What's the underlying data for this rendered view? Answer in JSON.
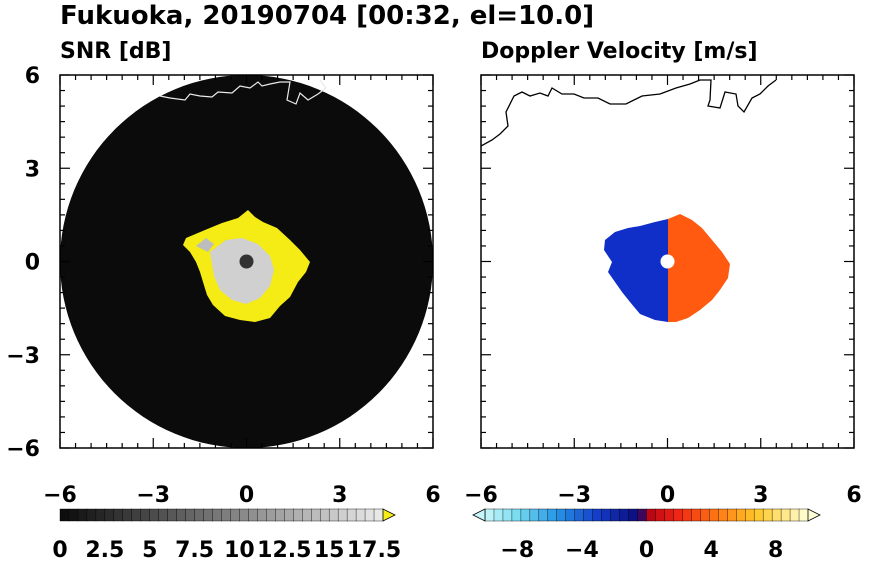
{
  "header": {
    "title": "Fukuoka, 20190704 [00:32, el=10.0]"
  },
  "chart_data": [
    {
      "type": "heatmap",
      "title": "SNR [dB]",
      "x_ticks": [
        "−6",
        "−3",
        "0",
        "3",
        "6"
      ],
      "y_ticks": [
        "6",
        "3",
        "0",
        "−3",
        "−6"
      ],
      "xlim": [
        -6,
        6
      ],
      "ylim": [
        -6,
        6
      ],
      "colorbar": {
        "ticks": [
          "0",
          "2.5",
          "5",
          "7.5",
          "10",
          "12.5",
          "15",
          "17.5"
        ],
        "range": [
          0,
          18
        ],
        "extend": "max"
      }
    },
    {
      "type": "heatmap",
      "title": "Doppler Velocity [m/s]",
      "x_ticks": [
        "−6",
        "−3",
        "0",
        "3",
        "6"
      ],
      "xlim": [
        -6,
        6
      ],
      "ylim": [
        -6,
        6
      ],
      "colorbar": {
        "ticks": [
          "−8",
          "−4",
          "0",
          "4",
          "8"
        ],
        "range": [
          -10,
          10
        ],
        "extend": "both"
      }
    }
  ]
}
